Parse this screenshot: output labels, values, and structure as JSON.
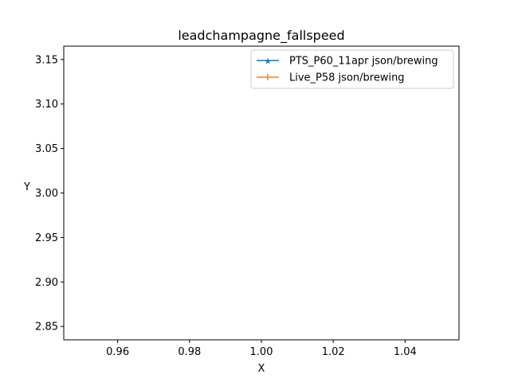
{
  "chart_data": {
    "type": "line",
    "title": "leadchampagne_fallspeed",
    "xlabel": "X",
    "ylabel": "Y",
    "xlim": [
      0.945,
      1.055
    ],
    "ylim": [
      2.835,
      3.165
    ],
    "xticks": [
      0.96,
      0.98,
      1.0,
      1.02,
      1.04
    ],
    "xtick_labels": [
      "0.96",
      "0.98",
      "1.00",
      "1.02",
      "1.04"
    ],
    "yticks": [
      2.85,
      2.9,
      2.95,
      3.0,
      3.05,
      3.1,
      3.15
    ],
    "ytick_labels": [
      "2.85",
      "2.90",
      "2.95",
      "3.00",
      "3.05",
      "3.10",
      "3.15"
    ],
    "grid": false,
    "legend_position": "top-right",
    "series": [
      {
        "name": "PTS_P60_11apr json/brewing",
        "color": "#1f77b4",
        "marker": "star",
        "x": [],
        "y": []
      },
      {
        "name": "Live_P58 json/brewing",
        "color": "#ff7f0e",
        "marker": "plus",
        "x": [],
        "y": []
      }
    ]
  }
}
